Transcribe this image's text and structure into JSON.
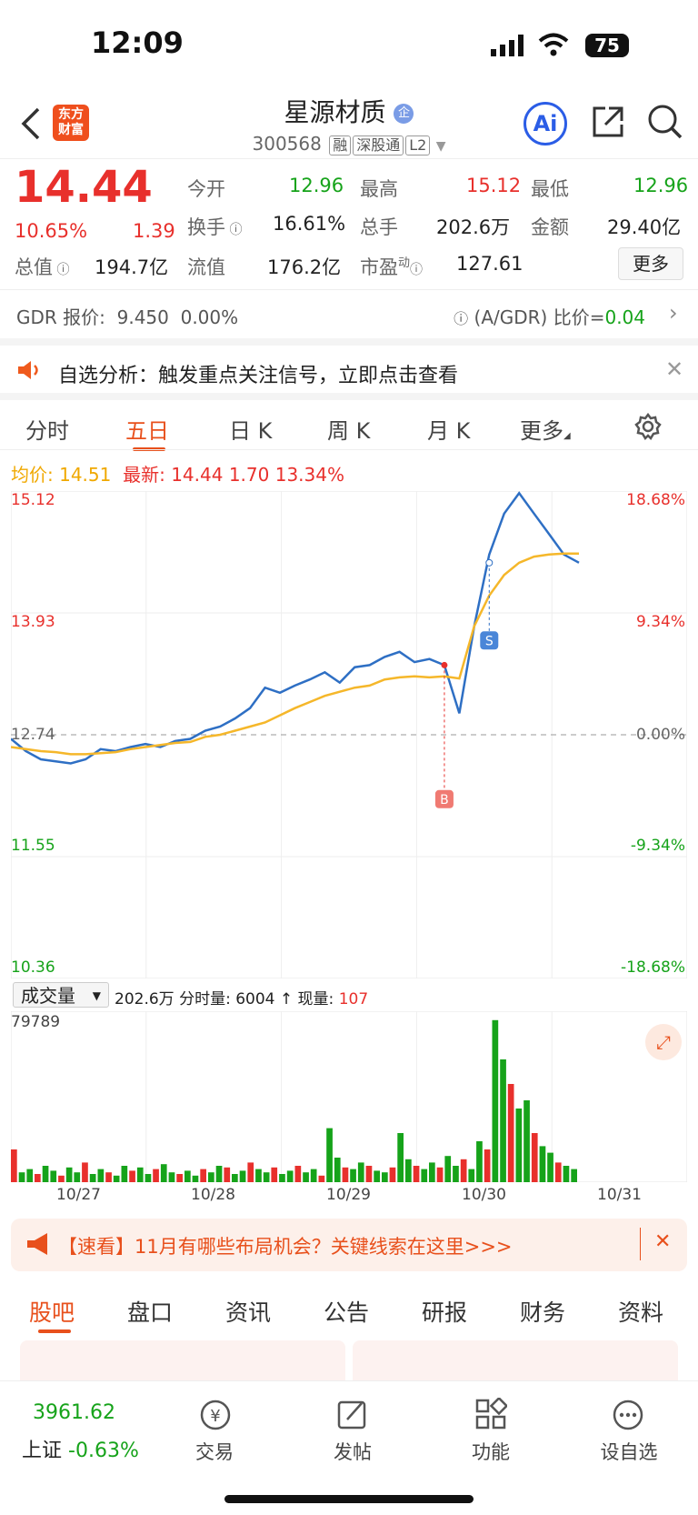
{
  "status": {
    "time": "12:09",
    "battery": "75"
  },
  "nav": {
    "logo_line1": "东方",
    "logo_line2": "财富",
    "stock_name": "星源材质",
    "name_badge": "企",
    "code": "300568",
    "tags": [
      "融",
      "深股通",
      "L2"
    ],
    "ai_label": "Ai"
  },
  "quote": {
    "price": "14.44",
    "change_pct": "10.65%",
    "change": "1.39",
    "open_label": "今开",
    "open": "12.96",
    "high_label": "最高",
    "high": "15.12",
    "low_label": "最低",
    "low": "12.96",
    "turnover_label": "换手",
    "turnover": "16.61%",
    "volume_label": "总手",
    "volume": "202.6万",
    "amount_label": "金额",
    "amount": "29.40亿",
    "mcap_label": "总值",
    "mcap": "194.7亿",
    "float_label": "流值",
    "float_cap": "176.2亿",
    "pe_label": "市盈",
    "pe_sup": "动",
    "pe": "127.61",
    "more_label": "更多"
  },
  "gdr": {
    "left": "GDR 报价:",
    "price": "9.450",
    "pct": "0.00%",
    "ratio_label": "(A/GDR) 比价=",
    "ratio": "0.04"
  },
  "notice": {
    "text": "自选分析：触发重点关注信号，立即点击查看"
  },
  "tabs": [
    "分时",
    "五日",
    "日 K",
    "周 K",
    "月 K",
    "更多"
  ],
  "active_tab": "五日",
  "info_line": {
    "avg_label": "均价:",
    "avg": "14.51",
    "latest_label": "最新:",
    "latest": "14.44",
    "chg": "1.70",
    "chg_pct": "13.34%"
  },
  "chart_data": {
    "type": "line",
    "days": [
      "10/27",
      "10/28",
      "10/29",
      "10/30",
      "10/31"
    ],
    "y_labels": [
      "15.12",
      "13.93",
      "12.74",
      "11.55",
      "10.36"
    ],
    "pct_labels": [
      "18.68%",
      "9.34%",
      "0.00%",
      "-9.34%",
      "-18.68%"
    ],
    "ylim": [
      10.36,
      15.12
    ],
    "prev_close": 12.74,
    "series": [
      {
        "values": [
          12.7,
          12.58,
          12.5,
          12.48,
          12.46,
          12.5,
          12.6,
          12.58,
          12.62,
          12.65,
          12.62,
          12.68,
          12.7,
          12.78,
          12.82,
          12.9,
          13.0,
          13.2,
          13.15,
          13.22,
          13.28,
          13.35,
          13.25,
          13.4,
          13.42,
          13.5,
          13.55,
          13.45,
          13.48,
          13.42,
          12.95,
          13.8,
          14.5,
          14.9,
          15.1,
          14.9,
          14.7,
          14.5,
          14.42
        ]
      },
      {
        "values": [
          12.62,
          12.6,
          12.58,
          12.57,
          12.55,
          12.55,
          12.56,
          12.57,
          12.6,
          12.62,
          12.64,
          12.66,
          12.67,
          12.72,
          12.74,
          12.78,
          12.82,
          12.86,
          12.93,
          13.0,
          13.06,
          13.12,
          13.16,
          13.2,
          13.22,
          13.28,
          13.3,
          13.31,
          13.3,
          13.31,
          13.29,
          13.8,
          14.1,
          14.3,
          14.42,
          14.48,
          14.5,
          14.51,
          14.51
        ]
      }
    ],
    "signals": [
      {
        "label": "B"
      },
      {
        "label": "S"
      }
    ]
  },
  "volume": {
    "selector": "成交量",
    "total": "202.6万",
    "tick_label": "分时量:",
    "tick": "6004",
    "now_label": "现量:",
    "now": "107",
    "max": "79789",
    "bars": [
      20,
      6,
      8,
      5,
      10,
      7,
      4,
      9,
      6,
      12,
      5,
      8,
      6,
      4,
      10,
      7,
      9,
      5,
      8,
      11,
      6,
      5,
      7,
      4,
      8,
      6,
      10,
      9,
      5,
      7,
      12,
      8,
      6,
      9,
      5,
      7,
      10,
      6,
      8,
      4,
      33,
      15,
      9,
      8,
      12,
      10,
      7,
      6,
      9,
      30,
      14,
      10,
      8,
      12,
      9,
      16,
      10,
      14,
      8,
      25,
      20,
      99,
      75,
      60,
      45,
      50,
      30,
      22,
      18,
      12,
      10,
      8
    ]
  },
  "banner": {
    "text": "【速看】11月有哪些布局机会？关键线索在这里>>>"
  },
  "bottom_tabs": [
    "股吧",
    "盘口",
    "资讯",
    "公告",
    "研报",
    "财务",
    "资料"
  ],
  "bottom_nav": {
    "index_value": "3961.62",
    "index_name": "上证",
    "index_pct": "-0.63%",
    "items": [
      "交易",
      "发帖",
      "功能",
      "设自选"
    ]
  },
  "colors": {
    "up": "#e8302c",
    "down": "#16a31a",
    "accent": "#e8501c",
    "price_line": "#2e6fc4",
    "avg_line": "#f5b72a"
  }
}
